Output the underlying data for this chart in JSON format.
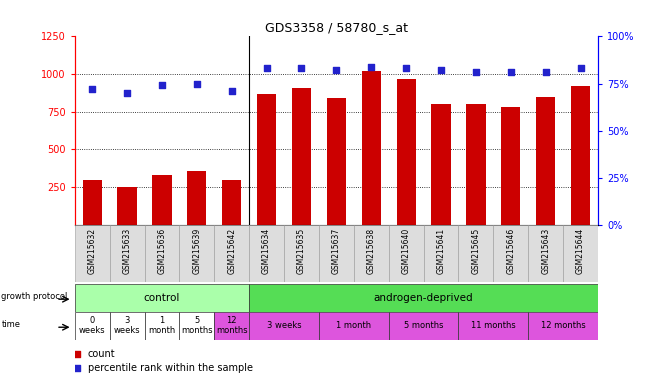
{
  "title": "GDS3358 / 58780_s_at",
  "samples": [
    "GSM215632",
    "GSM215633",
    "GSM215636",
    "GSM215639",
    "GSM215642",
    "GSM215634",
    "GSM215635",
    "GSM215637",
    "GSM215638",
    "GSM215640",
    "GSM215641",
    "GSM215645",
    "GSM215646",
    "GSM215643",
    "GSM215644"
  ],
  "counts": [
    295,
    250,
    330,
    355,
    295,
    870,
    910,
    840,
    1020,
    970,
    800,
    800,
    780,
    845,
    920
  ],
  "percentiles": [
    72,
    70,
    74,
    75,
    71,
    83,
    83,
    82,
    84,
    83,
    82,
    81,
    81,
    81,
    83
  ],
  "bar_color": "#CC0000",
  "dot_color": "#2222CC",
  "ylim_left": [
    0,
    1250
  ],
  "ylim_right": [
    0,
    100
  ],
  "yticks_left": [
    250,
    500,
    750,
    1000,
    1250
  ],
  "yticks_right": [
    0,
    25,
    50,
    75,
    100
  ],
  "growth_protocol_groups": [
    {
      "text": "control",
      "color": "#AAFFAA",
      "start": 0,
      "end": 5
    },
    {
      "text": "androgen-deprived",
      "color": "#55DD55",
      "start": 5,
      "end": 15
    }
  ],
  "time_cells": [
    {
      "text": "0\nweeks",
      "color": "#FFFFFF",
      "start": 0,
      "end": 1
    },
    {
      "text": "3\nweeks",
      "color": "#FFFFFF",
      "start": 1,
      "end": 2
    },
    {
      "text": "1\nmonth",
      "color": "#FFFFFF",
      "start": 2,
      "end": 3
    },
    {
      "text": "5\nmonths",
      "color": "#FFFFFF",
      "start": 3,
      "end": 4
    },
    {
      "text": "12\nmonths",
      "color": "#DD55DD",
      "start": 4,
      "end": 5
    },
    {
      "text": "3 weeks",
      "color": "#DD55DD",
      "start": 5,
      "end": 7
    },
    {
      "text": "1 month",
      "color": "#DD55DD",
      "start": 7,
      "end": 9
    },
    {
      "text": "5 months",
      "color": "#DD55DD",
      "start": 9,
      "end": 11
    },
    {
      "text": "11 months",
      "color": "#DD55DD",
      "start": 11,
      "end": 13
    },
    {
      "text": "12 months",
      "color": "#DD55DD",
      "start": 13,
      "end": 15
    }
  ],
  "bg_color": "#FFFFFF",
  "xtick_bg": "#DDDDDD",
  "n_samples": 15,
  "n_control": 5
}
